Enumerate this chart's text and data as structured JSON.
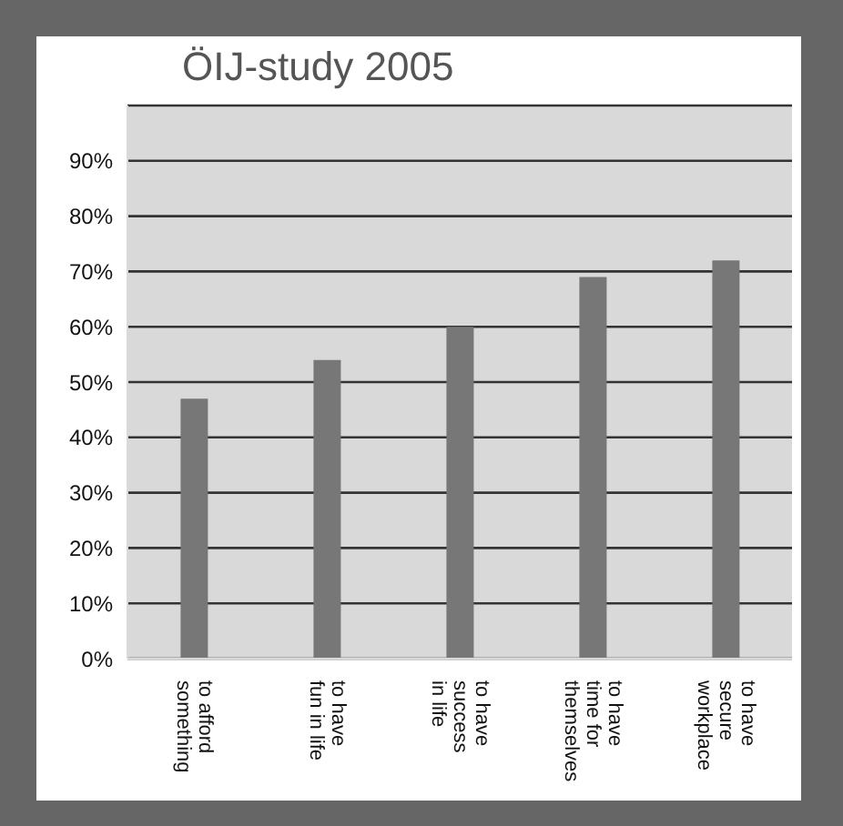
{
  "chart_data": {
    "type": "bar",
    "title": "ÖIJ-study 2005",
    "categories": [
      "to afford\nsomething",
      "to have\nfun in life",
      "to have\nsuccess\nin life",
      "to have\ntime for\nthemselves",
      "to have\nsecure\nworkplace"
    ],
    "values": [
      47,
      54,
      60,
      69,
      72
    ],
    "color": "#777777",
    "ylim": [
      0,
      100
    ],
    "yticks": [
      {
        "value": 0,
        "label": "0%"
      },
      {
        "value": 10,
        "label": "10%"
      },
      {
        "value": 20,
        "label": "20%"
      },
      {
        "value": 30,
        "label": "30%"
      },
      {
        "value": 40,
        "label": "40%"
      },
      {
        "value": 50,
        "label": "50%"
      },
      {
        "value": 60,
        "label": "60%"
      },
      {
        "value": 70,
        "label": "70%"
      },
      {
        "value": 80,
        "label": "80%"
      },
      {
        "value": 90,
        "label": "90%"
      }
    ],
    "grid": "y"
  }
}
